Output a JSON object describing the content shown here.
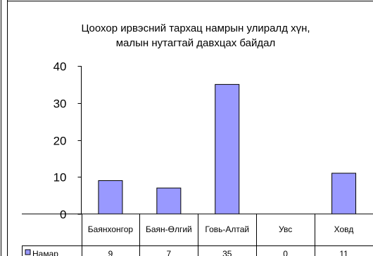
{
  "chart_data": {
    "type": "bar",
    "title_lines": [
      "Цоохор ирвэсний тархац  намрын улиралд хүн,",
      "малын нутагтай  давхцах байдал"
    ],
    "categories": [
      "Баянхонгор",
      "Баян-Өлгий",
      "Говь-Алтай",
      "Увс",
      "Ховд"
    ],
    "series": [
      {
        "name": "Намар",
        "values": [
          9,
          7,
          35,
          0,
          11
        ]
      }
    ],
    "ylim": [
      0,
      40
    ],
    "yticks": [
      "0",
      "10",
      "20",
      "30",
      "40"
    ],
    "grid": false,
    "legend_placement": "data-table-left",
    "colors": {
      "bar": "#9999ff",
      "bar_stroke": "#000000",
      "axis": "#000000",
      "frame": "#000000"
    }
  }
}
